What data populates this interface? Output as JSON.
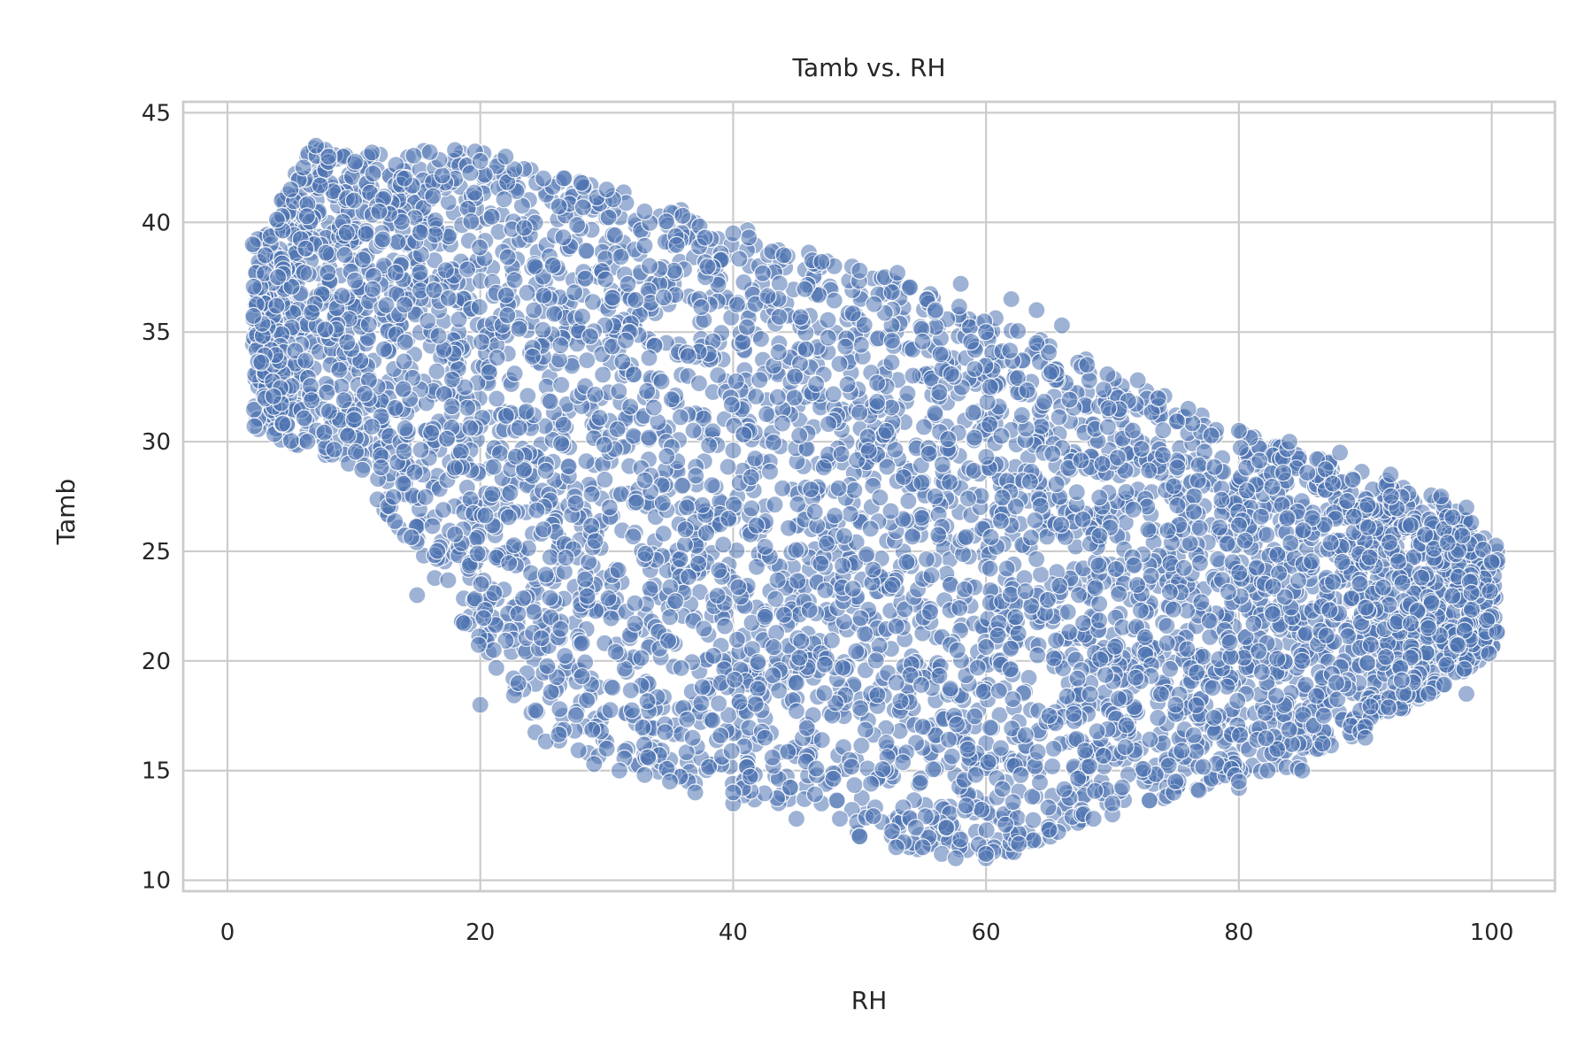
{
  "chart_data": {
    "type": "scatter",
    "title": "Tamb vs. RH",
    "xlabel": "RH",
    "ylabel": "Tamb",
    "xlim": [
      -3.5,
      105
    ],
    "ylim": [
      9.5,
      45.5
    ],
    "xticks": [
      "0",
      "20",
      "40",
      "60",
      "80",
      "100"
    ],
    "yticks": [
      "10",
      "15",
      "20",
      "25",
      "30",
      "35",
      "40",
      "45"
    ],
    "xtick_values": [
      0,
      20,
      40,
      60,
      80,
      100
    ],
    "ytick_values": [
      10,
      15,
      20,
      25,
      30,
      35,
      40,
      45
    ],
    "grid": true,
    "marker_color": "#4c72b0",
    "series": [
      {
        "x": [
          2,
          3,
          4,
          5,
          6,
          7,
          8,
          10,
          12,
          14,
          16,
          18,
          20,
          22,
          25,
          28,
          30,
          33,
          36,
          40,
          44,
          48,
          52,
          56,
          60,
          64,
          68,
          72,
          76,
          80,
          84,
          88,
          92,
          96,
          98,
          100,
          47,
          50,
          53,
          58,
          62,
          64,
          66,
          98.4,
          52.9,
          56.5,
          57.6,
          65.7,
          68.5,
          29,
          31,
          33,
          35,
          37,
          40,
          45,
          50,
          55,
          60,
          65,
          70,
          75,
          80,
          85,
          90,
          95,
          98,
          10,
          15,
          20,
          30,
          40,
          50,
          60,
          70,
          80,
          90,
          25,
          35,
          45,
          55,
          65,
          75,
          85,
          95
        ],
        "y": [
          39,
          38.5,
          37.5,
          41.5,
          42.5,
          43.5,
          43,
          41,
          40.5,
          42,
          43.2,
          43.3,
          42.8,
          43,
          42,
          41.8,
          41.5,
          40.5,
          40.3,
          39.5,
          38.5,
          38,
          37.5,
          36,
          35,
          34.5,
          33.5,
          32.8,
          31.5,
          30.5,
          30,
          29.5,
          28.5,
          27.5,
          27,
          24.5,
          38.2,
          37.8,
          37.7,
          37.2,
          36.5,
          36,
          35.3,
          23.1,
          11.5,
          11.2,
          11,
          12.2,
          12.8,
          15.3,
          15,
          14.8,
          14.5,
          14,
          13.5,
          12.8,
          12,
          11.5,
          11,
          12.3,
          13,
          14.5,
          14.2,
          15,
          17,
          18.5,
          18.5,
          31,
          23,
          18,
          16,
          14,
          12,
          11.2,
          13.5,
          14.5,
          16.5,
          26,
          22,
          19,
          17,
          17.5,
          18,
          20,
          21.5
        ]
      }
    ]
  }
}
